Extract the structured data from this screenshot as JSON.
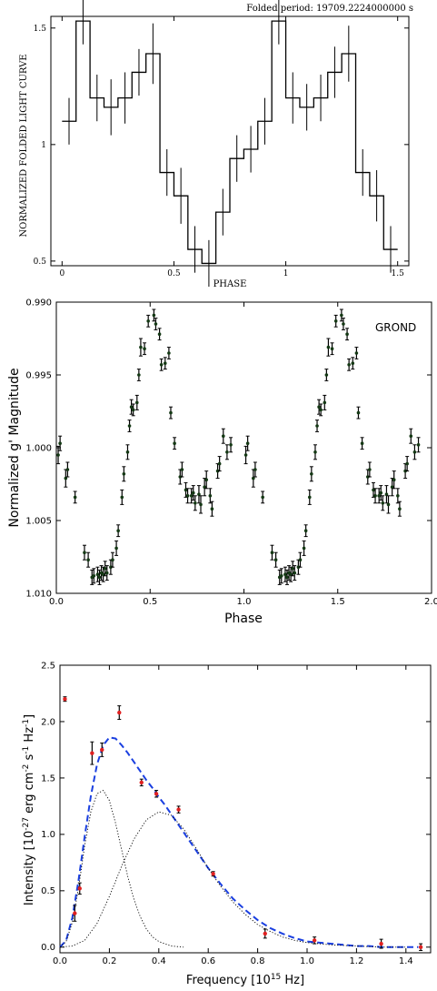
{
  "chart_data": [
    {
      "type": "line",
      "title": "Folded period: 19709.2224000000 s",
      "xlabel": "PHASE",
      "ylabel": "NORMALIZED FOLDED LIGHT CURVE",
      "xlim": [
        -0.05,
        1.55
      ],
      "ylim": [
        0.48,
        1.55
      ],
      "xticks": [
        0,
        0.5,
        1,
        1.5
      ],
      "xtick_labels": [
        "0",
        "0.5",
        "1",
        "1.5"
      ],
      "yticks": [
        0.5,
        1,
        1.5
      ],
      "ytick_labels": [
        "0.5",
        "1",
        "1.5"
      ],
      "grid": false,
      "series": [
        {
          "step_width": 0.0625,
          "x": [
            0,
            0.0625,
            0.125,
            0.1875,
            0.25,
            0.3125,
            0.375,
            0.4375,
            0.5,
            0.5625,
            0.625,
            0.6875,
            0.75,
            0.8125,
            0.875,
            0.9375,
            1,
            1.0625,
            1.125,
            1.1875,
            1.25,
            1.3125,
            1.375,
            1.4375
          ],
          "y": [
            1.1,
            1.53,
            1.2,
            1.16,
            1.2,
            1.31,
            1.39,
            0.88,
            0.78,
            0.55,
            0.49,
            0.71,
            0.94,
            0.98,
            1.1,
            1.53,
            1.2,
            1.16,
            1.2,
            1.31,
            1.39,
            0.88,
            0.78,
            0.55
          ],
          "err": [
            0.1,
            0.1,
            0.1,
            0.12,
            0.11,
            0.1,
            0.13,
            0.1,
            0.12,
            0.1,
            0.1,
            0.1,
            0.1,
            0.1,
            0.1,
            0.1,
            0.11,
            0.1,
            0.1,
            0.11,
            0.12,
            0.1,
            0.11,
            0.1
          ]
        }
      ]
    },
    {
      "type": "scatter",
      "title": "",
      "xlabel": "Phase",
      "ylabel": "Normalized g' Magnitude",
      "annotation": "GROND",
      "xlim": [
        0,
        2
      ],
      "ylim": [
        1.01,
        0.99
      ],
      "y_inverted": true,
      "xticks": [
        0,
        0.5,
        1,
        1.5,
        2
      ],
      "xtick_labels": [
        "0.0",
        "0.5",
        "1.0",
        "1.5",
        "2.0"
      ],
      "yticks": [
        0.99,
        0.995,
        1.0,
        1.005,
        1.01
      ],
      "ytick_labels": [
        "0.990",
        "0.995",
        "1.000",
        "1.005",
        "1.010"
      ],
      "grid": false,
      "series": [
        {
          "x": [
            0.01,
            0.02,
            0.05,
            0.06,
            0.1,
            0.15,
            0.17,
            0.19,
            0.2,
            0.22,
            0.23,
            0.24,
            0.25,
            0.26,
            0.27,
            0.29,
            0.3,
            0.32,
            0.33,
            0.35,
            0.36,
            0.38,
            0.39,
            0.4,
            0.41,
            0.43,
            0.44,
            0.45,
            0.47,
            0.49,
            0.52,
            0.53,
            0.55,
            0.56,
            0.58,
            0.6,
            0.61,
            0.63,
            0.66,
            0.67,
            0.69,
            0.7,
            0.72,
            0.73,
            0.74,
            0.76,
            0.77,
            0.79,
            0.8,
            0.82,
            0.83,
            0.86,
            0.87,
            0.89,
            0.91,
            0.93
          ],
          "y": [
            1.0005,
            0.9997,
            1.0021,
            1.0015,
            1.0034,
            1.0072,
            1.0077,
            1.0089,
            1.0088,
            1.0087,
            1.0089,
            1.0086,
            1.0087,
            1.0083,
            1.0086,
            1.0082,
            1.0077,
            1.0069,
            1.0057,
            1.0034,
            1.0018,
            1.0003,
            0.9985,
            0.9972,
            0.9974,
            0.9969,
            0.995,
            0.9931,
            0.9932,
            0.9913,
            0.9909,
            0.9915,
            0.9922,
            0.9943,
            0.9942,
            0.9935,
            0.9976,
            0.9997,
            1.002,
            1.0015,
            1.0029,
            1.0033,
            1.0033,
            1.0031,
            1.0038,
            1.0032,
            1.0039,
            1.0027,
            1.0022,
            1.0033,
            1.0042,
            1.0016,
            1.0011,
            0.9992,
            1.0003,
            0.9998
          ],
          "err": [
            0.0006,
            0.0005,
            0.0006,
            0.0005,
            0.0004,
            0.0005,
            0.0005,
            0.0005,
            0.0005,
            0.0005,
            0.0005,
            0.0005,
            0.0005,
            0.0005,
            0.0005,
            0.0005,
            0.0005,
            0.0005,
            0.0004,
            0.0005,
            0.0005,
            0.0005,
            0.0004,
            0.0005,
            0.0004,
            0.0005,
            0.0004,
            0.0006,
            0.0004,
            0.0004,
            0.0004,
            0.0004,
            0.0004,
            0.0004,
            0.0004,
            0.0004,
            0.0004,
            0.0004,
            0.0005,
            0.0005,
            0.0005,
            0.0005,
            0.0005,
            0.0005,
            0.0005,
            0.0006,
            0.0006,
            0.0006,
            0.0006,
            0.0005,
            0.0005,
            0.0005,
            0.0005,
            0.0005,
            0.0005,
            0.0005
          ],
          "repeat_offset": 1.0,
          "color": "#143814"
        }
      ]
    },
    {
      "type": "scatter",
      "title": "",
      "xlabel": "Frequency [10$^{15}$ Hz]",
      "ylabel": "Intensity [10$^{-27}$ erg cm$^{-2}$ s$^{-1}$ Hz$^{-1}$]",
      "xlim": [
        0.0,
        1.5
      ],
      "ylim": [
        -0.05,
        2.5
      ],
      "xticks": [
        0.0,
        0.2,
        0.4,
        0.6,
        0.8,
        1.0,
        1.2,
        1.4
      ],
      "xtick_labels": [
        "0.0",
        "0.2",
        "0.4",
        "0.6",
        "0.8",
        "1.0",
        "1.2",
        "1.4"
      ],
      "yticks": [
        0.0,
        0.5,
        1.0,
        1.5,
        2.0,
        2.5
      ],
      "ytick_labels": [
        "0.0",
        "0.5",
        "1.0",
        "1.5",
        "2.0",
        "2.5"
      ],
      "grid": false,
      "series": [
        {
          "x": [
            0.02,
            0.06,
            0.08,
            0.13,
            0.17,
            0.24,
            0.33,
            0.39,
            0.48,
            0.62,
            0.83,
            1.03,
            1.3,
            1.46
          ],
          "y": [
            2.2,
            0.3,
            0.52,
            1.72,
            1.75,
            2.08,
            1.46,
            1.36,
            1.22,
            0.65,
            0.12,
            0.06,
            0.03,
            0.0
          ],
          "err": [
            0.02,
            0.07,
            0.05,
            0.1,
            0.06,
            0.06,
            0.03,
            0.03,
            0.03,
            0.02,
            0.04,
            0.03,
            0.04,
            0.03
          ],
          "marker_color": "#e02020"
        },
        {
          "curve": "sum",
          "style": "dashed",
          "color": "#1a3fe0",
          "x": [
            0.0,
            0.025,
            0.05,
            0.075,
            0.1,
            0.125,
            0.15,
            0.175,
            0.2,
            0.225,
            0.25,
            0.275,
            0.3,
            0.325,
            0.35,
            0.375,
            0.4,
            0.425,
            0.45,
            0.475,
            0.5,
            0.55,
            0.6,
            0.65,
            0.7,
            0.75,
            0.8,
            0.85,
            0.9,
            0.95,
            1.0,
            1.05,
            1.1,
            1.15,
            1.2,
            1.25,
            1.3,
            1.35,
            1.4,
            1.45
          ],
          "y": [
            0.0,
            0.06,
            0.26,
            0.59,
            0.98,
            1.34,
            1.62,
            1.79,
            1.86,
            1.85,
            1.79,
            1.72,
            1.64,
            1.56,
            1.48,
            1.41,
            1.33,
            1.26,
            1.18,
            1.1,
            1.02,
            0.86,
            0.7,
            0.56,
            0.43,
            0.33,
            0.24,
            0.17,
            0.12,
            0.08,
            0.05,
            0.04,
            0.03,
            0.02,
            0.01,
            0.01,
            0.0,
            0.0,
            0.0,
            0.0
          ]
        },
        {
          "curve": "component",
          "style": "dotted",
          "color": "#000000",
          "x": [
            0.0,
            0.025,
            0.05,
            0.075,
            0.1,
            0.125,
            0.15,
            0.175,
            0.2,
            0.225,
            0.25,
            0.275,
            0.3,
            0.325,
            0.35,
            0.375,
            0.4,
            0.45,
            0.5
          ],
          "y": [
            0.0,
            0.05,
            0.22,
            0.52,
            0.9,
            1.2,
            1.36,
            1.39,
            1.3,
            1.1,
            0.86,
            0.62,
            0.42,
            0.27,
            0.16,
            0.09,
            0.05,
            0.01,
            0.0
          ]
        },
        {
          "curve": "component",
          "style": "dotted",
          "color": "#000000",
          "x": [
            0.0,
            0.05,
            0.1,
            0.15,
            0.2,
            0.25,
            0.3,
            0.35,
            0.4,
            0.45,
            0.5,
            0.55,
            0.6,
            0.65,
            0.7,
            0.75,
            0.8,
            0.85,
            0.9,
            0.95,
            1.0,
            1.1,
            1.2,
            1.3,
            1.4
          ],
          "y": [
            0.0,
            0.01,
            0.06,
            0.21,
            0.45,
            0.72,
            0.96,
            1.13,
            1.2,
            1.17,
            1.05,
            0.88,
            0.7,
            0.54,
            0.4,
            0.29,
            0.2,
            0.14,
            0.09,
            0.06,
            0.04,
            0.02,
            0.01,
            0.0,
            0.0
          ]
        }
      ]
    }
  ]
}
